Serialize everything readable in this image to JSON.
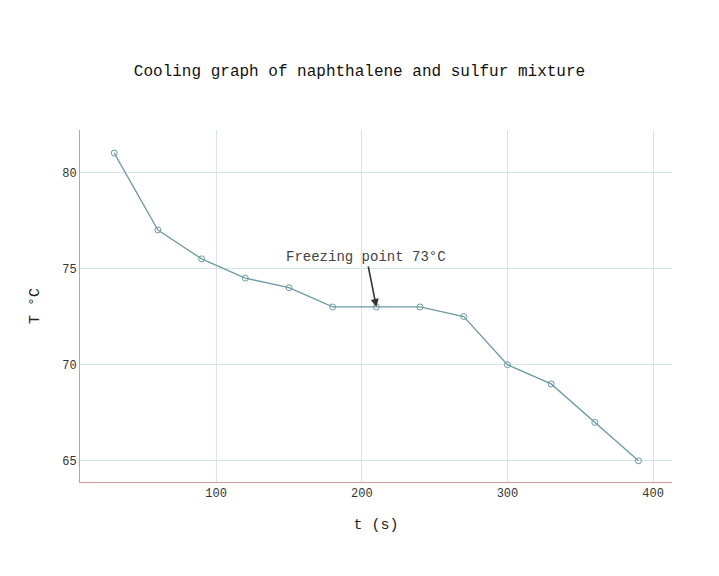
{
  "chart_data": {
    "type": "line",
    "title": "Cooling graph of naphthalene and sulfur mixture",
    "x_label": "t (s)",
    "y_label": "T °C",
    "x": [
      30,
      60,
      90,
      120,
      150,
      180,
      210,
      240,
      270,
      300,
      330,
      360,
      390
    ],
    "values": [
      81,
      77,
      75.5,
      74.5,
      74,
      73,
      73,
      73,
      72.5,
      70,
      69,
      67,
      65
    ],
    "color": "#6f9aa6",
    "marker": "circle-open",
    "line_style": "solid",
    "xlim": [
      6.5,
      413
    ],
    "ylim": [
      63.9,
      82.2
    ],
    "xticks": [
      100,
      200,
      300,
      400
    ],
    "yticks": [
      65,
      70,
      75,
      80
    ],
    "grid": true,
    "annotation": {
      "text": "Freezing point 73°C",
      "x": 210,
      "y": 73
    }
  }
}
